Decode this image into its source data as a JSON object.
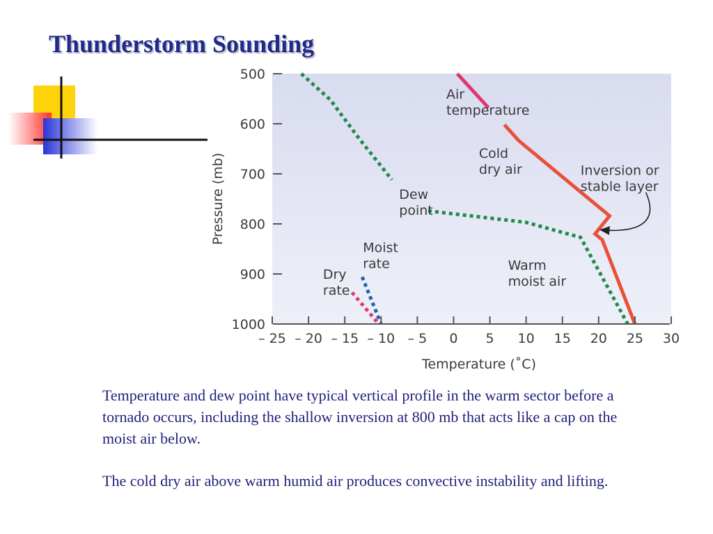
{
  "slide": {
    "title": "Thunderstorm Sounding",
    "paragraphs": [
      "Temperature and dew point have typical vertical profile in the warm sector before a tornado occurs, including the shallow inversion at 800 mb that acts like a cap on the moist air below.",
      "The cold dry air above warm humid air produces convective instability and lifting."
    ]
  },
  "colors": {
    "plot_background_top": "#d9dbf0",
    "plot_background_bottom": "#eef0f8",
    "air_temperature": "#e8503a",
    "air_temperature_top": "#e0376a",
    "dew_point": "#1f8a4c",
    "dry_rate": "#e03a6e",
    "moist_rate": "#1f63b0",
    "title_color": "#1f2a8a",
    "body_text_color": "#1f1f7a"
  },
  "decoration": {
    "icons": [
      "yellow-square-icon",
      "red-gradient-square-icon",
      "blue-gradient-square-icon"
    ]
  },
  "chart_data": {
    "type": "line",
    "title": "",
    "xlabel": "Temperature (˚C)",
    "ylabel": "Pressure (mb)",
    "xlim": [
      -25,
      30
    ],
    "ylim": [
      1000,
      500
    ],
    "y_scale": "linear, pressure decreasing upward",
    "grid": false,
    "x_ticks": [
      -25,
      -20,
      -15,
      -10,
      -5,
      0,
      5,
      10,
      15,
      20,
      25,
      30
    ],
    "x_tick_labels": [
      "– 25",
      "– 20",
      "– 15",
      "– 10",
      "– 5",
      "0",
      "5",
      "10",
      "15",
      "20",
      "25",
      "30"
    ],
    "y_ticks": [
      500,
      600,
      700,
      800,
      900,
      1000
    ],
    "y_tick_labels": [
      "500",
      "600",
      "700",
      "800",
      "900",
      "1000"
    ],
    "series": [
      {
        "key": "air_temperature_upper",
        "style": "solid",
        "points": [
          [
            0.5,
            500
          ],
          [
            4.8,
            568
          ]
        ]
      },
      {
        "key": "air_temperature",
        "style": "solid",
        "points": [
          [
            7,
            602
          ],
          [
            9,
            634
          ],
          [
            21.5,
            784
          ],
          [
            19.5,
            820
          ],
          [
            20.5,
            832
          ],
          [
            25,
            1000
          ]
        ]
      },
      {
        "key": "dew_point",
        "style": "dotted",
        "points": [
          [
            -21,
            500
          ],
          [
            -17,
            552
          ],
          [
            -13,
            630
          ],
          [
            -8.5,
            712
          ]
        ]
      },
      {
        "key": "dew_point_lower",
        "style": "dotted",
        "points": [
          [
            -3.5,
            774
          ],
          [
            10,
            797
          ],
          [
            17.5,
            827
          ],
          [
            24,
            1000
          ]
        ]
      },
      {
        "key": "dry_rate",
        "style": "dotted",
        "points": [
          [
            -14,
            937
          ],
          [
            -10.3,
            1000
          ]
        ]
      },
      {
        "key": "moist_rate",
        "style": "dotted",
        "points": [
          [
            -12.6,
            906
          ],
          [
            -10,
            1000
          ]
        ]
      }
    ],
    "annotations": [
      {
        "text_lines": [
          "Air",
          "temperature"
        ],
        "at": [
          -1,
          550
        ]
      },
      {
        "text_lines": [
          "Cold",
          "dry air"
        ],
        "at": [
          3.5,
          668
        ]
      },
      {
        "text_lines": [
          "Inversion or",
          "stable layer"
        ],
        "at": [
          17.5,
          702
        ]
      },
      {
        "text_lines": [
          "Dew",
          "point"
        ],
        "at": [
          -7.5,
          750
        ]
      },
      {
        "text_lines": [
          "Moist",
          "rate"
        ],
        "at": [
          -12.5,
          856
        ]
      },
      {
        "text_lines": [
          "Warm",
          "moist air"
        ],
        "at": [
          7.5,
          892
        ]
      },
      {
        "text_lines": [
          "Dry",
          "rate"
        ],
        "at": [
          -18,
          910
        ]
      }
    ],
    "arrow": {
      "from": [
        26.5,
        737
      ],
      "to": [
        19.7,
        812
      ],
      "description": "points from Inversion label to inversion at ~800 mb"
    }
  }
}
